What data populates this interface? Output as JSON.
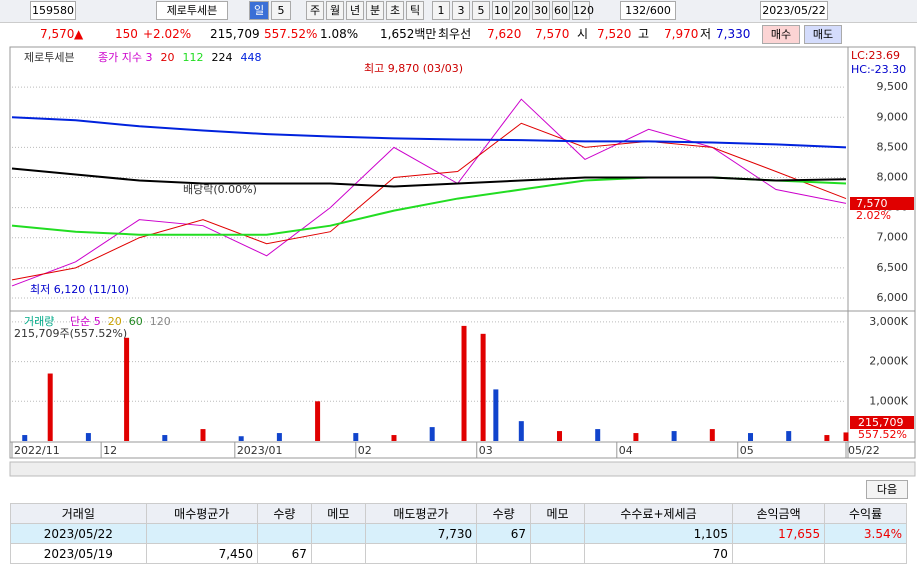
{
  "toolbar": {
    "code": "159580",
    "name": "제로투세븐",
    "type_label": "일",
    "type_value": "5",
    "period_buttons": [
      "주",
      "월",
      "년",
      "분",
      "초",
      "틱"
    ],
    "minute_buttons": [
      "1",
      "3",
      "5",
      "10",
      "20",
      "30",
      "60",
      "120"
    ],
    "count": "132/600",
    "date": "2023/05/22"
  },
  "quote": {
    "price": "7,570",
    "change": "150",
    "change_rate": "+2.02%",
    "volume": "215,709",
    "volume_rate": "557.52%",
    "turnover": "1.08%",
    "amount": "1,652백만",
    "best_label": "최우선",
    "ask": "7,620",
    "bid": "7,570",
    "open_label": "시",
    "open": "7,520",
    "high_label": "고",
    "high": "7,970",
    "low_label": "저",
    "low": "7,330",
    "buy": "매수",
    "sell": "매도"
  },
  "chart_data": [
    {
      "type": "line",
      "title": "제로투세븐",
      "x": [
        0,
        10,
        20,
        30,
        40,
        50,
        60,
        70,
        80,
        90,
        100,
        110,
        120,
        131
      ],
      "xlim": [
        0,
        131
      ],
      "ylim": [
        5800,
        10150
      ],
      "yticks": [
        {
          "value": 6000,
          "label": "6,000"
        },
        {
          "value": 6500,
          "label": "6,500"
        },
        {
          "value": 7000,
          "label": "7,000"
        },
        {
          "value": 7500,
          "label": "7,500"
        },
        {
          "value": 8000,
          "label": "8,000"
        },
        {
          "value": 8500,
          "label": "8,500"
        },
        {
          "value": 9000,
          "label": "9,000"
        },
        {
          "value": 9500,
          "label": "9,500"
        }
      ],
      "grid": true,
      "series": [
        {
          "name": "종가 지수 3",
          "color": "#cc00cc",
          "values": [
            6200,
            6600,
            7300,
            7200,
            6700,
            7500,
            8500,
            7900,
            9300,
            8300,
            8800,
            8500,
            7800,
            7570
          ]
        },
        {
          "name": "20",
          "color": "#e00000",
          "values": [
            6300,
            6500,
            7000,
            7300,
            6900,
            7100,
            8000,
            8100,
            8900,
            8500,
            8600,
            8500,
            8100,
            7650
          ]
        },
        {
          "name": "112",
          "color": "#22dd22",
          "values": [
            7200,
            7100,
            7050,
            7050,
            7050,
            7200,
            7450,
            7650,
            7800,
            7950,
            8000,
            8000,
            7950,
            7900
          ]
        },
        {
          "name": "224",
          "color": "#000000",
          "values": [
            8150,
            8050,
            7950,
            7900,
            7900,
            7900,
            7850,
            7900,
            7950,
            8000,
            8000,
            8000,
            7950,
            7970
          ]
        },
        {
          "name": "448",
          "color": "#0022dd",
          "values": [
            9000,
            8950,
            8850,
            8780,
            8720,
            8680,
            8650,
            8630,
            8620,
            8600,
            8600,
            8580,
            8550,
            8500
          ]
        }
      ],
      "annotations": {
        "high": "최고 9,870 (03/03)",
        "low": "최저 6,120 (11/10)",
        "ex_dividend": "배당락(0.00%)",
        "lc": "LC:23.69",
        "hc": "HC:-23.30",
        "last_price": "7,570",
        "last_rate": "2.02%"
      }
    },
    {
      "type": "bar",
      "title": "거래량",
      "subtitle": "215,709주(557.52%)",
      "ma_labels": [
        "단순 5",
        "20",
        "60",
        "120"
      ],
      "x": [
        2,
        6,
        12,
        18,
        24,
        30,
        36,
        42,
        48,
        54,
        60,
        66,
        71,
        74,
        76,
        80,
        86,
        92,
        98,
        104,
        110,
        116,
        122,
        128,
        131
      ],
      "xlim": [
        0,
        131
      ],
      "ylim": [
        0,
        3250000
      ],
      "yticks": [
        {
          "value": 1000000,
          "label": "1,000K"
        },
        {
          "value": 2000000,
          "label": "2,000K"
        },
        {
          "value": 3000000,
          "label": "3,000K"
        }
      ],
      "grid": true,
      "xticks": [
        {
          "value": 0,
          "label": "2022/11"
        },
        {
          "value": 14,
          "label": "12"
        },
        {
          "value": 35,
          "label": "2023/01"
        },
        {
          "value": 54,
          "label": "02"
        },
        {
          "value": 73,
          "label": "03"
        },
        {
          "value": 95,
          "label": "04"
        },
        {
          "value": 114,
          "label": "05"
        },
        {
          "value": 131,
          "label": "05/22"
        }
      ],
      "values": [
        150000,
        1700000,
        200000,
        2600000,
        150000,
        300000,
        120000,
        200000,
        1000000,
        200000,
        150000,
        350000,
        2900000,
        2700000,
        1300000,
        500000,
        250000,
        300000,
        200000,
        250000,
        300000,
        200000,
        250000,
        150000,
        215709
      ],
      "colors": [
        "#1144cc",
        "#e00000",
        "#1144cc",
        "#e00000",
        "#1144cc",
        "#e00000",
        "#1144cc",
        "#1144cc",
        "#e00000",
        "#1144cc",
        "#e00000",
        "#1144cc",
        "#e00000",
        "#e00000",
        "#1144cc",
        "#1144cc",
        "#e00000",
        "#1144cc",
        "#e00000",
        "#1144cc",
        "#e00000",
        "#1144cc",
        "#1144cc",
        "#e00000",
        "#e00000"
      ],
      "last_labels": [
        "215,709",
        "557.52%"
      ]
    }
  ],
  "table": {
    "next": "다음",
    "headers": [
      "거래일",
      "매수평균가",
      "수량",
      "메모",
      "매도평균가",
      "수량",
      "메모",
      "수수료+제세금",
      "손익금액",
      "수익률"
    ],
    "rows": [
      [
        "2023/05/22",
        null,
        null,
        null,
        "7,730",
        "67",
        null,
        "1,105",
        "17,655",
        "3.54%"
      ],
      [
        "2023/05/19",
        "7,450",
        "67",
        null,
        null,
        null,
        null,
        "70",
        null,
        null
      ]
    ]
  }
}
